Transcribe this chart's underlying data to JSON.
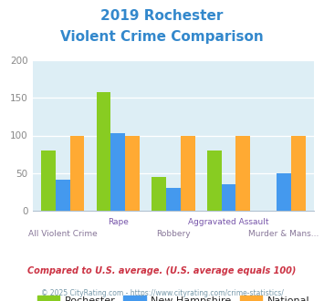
{
  "title_line1": "2019 Rochester",
  "title_line2": "Violent Crime Comparison",
  "categories": [
    "All Violent Crime",
    "Rape",
    "Robbery",
    "Aggravated Assault",
    "Murder & Mans..."
  ],
  "rochester": [
    80,
    157,
    45,
    80,
    0
  ],
  "new_hampshire": [
    41,
    103,
    30,
    35,
    50
  ],
  "national": [
    100,
    100,
    100,
    100,
    100
  ],
  "color_rochester": "#88cc22",
  "color_nh": "#4499ee",
  "color_national": "#ffaa33",
  "ylim": [
    0,
    200
  ],
  "yticks": [
    0,
    50,
    100,
    150,
    200
  ],
  "bg_color": "#ddeef5",
  "title_color": "#3388cc",
  "footer_text": "Compared to U.S. average. (U.S. average equals 100)",
  "copyright_text": "© 2025 CityRating.com - https://www.cityrating.com/crime-statistics/",
  "footer_color": "#cc3344",
  "copyright_color": "#7799aa",
  "xlabel_top_color": "#7755aa",
  "xlabel_bot_color": "#887799",
  "ylabel_color": "#888888",
  "legend_text_color": "#222222"
}
